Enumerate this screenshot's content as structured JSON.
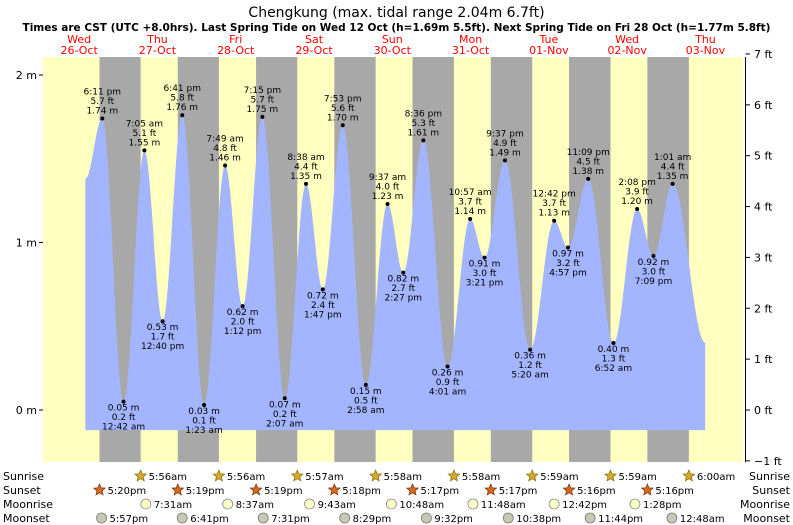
{
  "chart_data": {
    "type": "area",
    "title": "Chengkung (max. tidal range 2.04m 6.7ft)",
    "subtitle": "Times are CST (UTC +8.0hrs). Last Spring Tide on Wed 12 Oct (h=1.69m 5.5ft). Next Spring Tide on Fri 28 Oct (h=1.77m 5.8ft)",
    "x_unit": "hours since Wed 26-Oct 00:00",
    "xlim": [
      0,
      200
    ],
    "ylim_m": [
      -0.2,
      2.1
    ],
    "ylim_ft": [
      -1,
      7
    ],
    "left_axis": {
      "ticks": [
        0,
        1,
        2
      ],
      "tick_labels": [
        "0 m",
        "1 m",
        "2 m"
      ]
    },
    "right_axis": {
      "ticks": [
        -1,
        0,
        1,
        2,
        3,
        4,
        5,
        6,
        7
      ],
      "tick_labels": [
        "−1 ft",
        "0 ft",
        "1 ft",
        "2 ft",
        "3 ft",
        "4 ft",
        "5 ft",
        "6 ft",
        "7 ft"
      ]
    },
    "days": [
      {
        "dow": "Wed",
        "date": "26-Oct",
        "midnight": 0
      },
      {
        "dow": "Thu",
        "date": "27-Oct",
        "midnight": 24
      },
      {
        "dow": "Fri",
        "date": "28-Oct",
        "midnight": 48
      },
      {
        "dow": "Sat",
        "date": "29-Oct",
        "midnight": 72
      },
      {
        "dow": "Sun",
        "date": "30-Oct",
        "midnight": 96
      },
      {
        "dow": "Mon",
        "date": "31-Oct",
        "midnight": 120
      },
      {
        "dow": "Tue",
        "date": "01-Nov",
        "midnight": 144
      },
      {
        "dow": "Wed",
        "date": "02-Nov",
        "midnight": 168
      },
      {
        "dow": "Thu",
        "date": "03-Nov",
        "midnight": 192
      }
    ],
    "curve_start": {
      "t": 13.0,
      "h": 1.38
    },
    "curve_end": {
      "t": 203.0,
      "h": 0.4
    },
    "tides": [
      {
        "t": 18.18,
        "h": 1.74,
        "type": "high",
        "time": "6:11 pm",
        "m": "1.74 m",
        "ft": "5.7 ft"
      },
      {
        "t": 24.7,
        "h": 0.05,
        "type": "low",
        "time": "12:42 am",
        "m": "0.05 m",
        "ft": "0.2 ft"
      },
      {
        "t": 31.08,
        "h": 1.55,
        "type": "high",
        "time": "7:05 am",
        "m": "1.55 m",
        "ft": "5.1 ft"
      },
      {
        "t": 36.67,
        "h": 0.53,
        "type": "low",
        "time": "12:40 pm",
        "m": "0.53 m",
        "ft": "1.7 ft"
      },
      {
        "t": 42.68,
        "h": 1.76,
        "type": "high",
        "time": "6:41 pm",
        "m": "1.76 m",
        "ft": "5.8 ft"
      },
      {
        "t": 49.38,
        "h": 0.03,
        "type": "low",
        "time": "1:23 am",
        "m": "0.03 m",
        "ft": "0.1 ft"
      },
      {
        "t": 55.82,
        "h": 1.46,
        "type": "high",
        "time": "7:49 am",
        "m": "1.46 m",
        "ft": "4.8 ft"
      },
      {
        "t": 61.2,
        "h": 0.62,
        "type": "low",
        "time": "1:12 pm",
        "m": "0.62 m",
        "ft": "2.0 ft"
      },
      {
        "t": 67.25,
        "h": 1.75,
        "type": "high",
        "time": "7:15 pm",
        "m": "1.75 m",
        "ft": "5.7 ft"
      },
      {
        "t": 74.12,
        "h": 0.07,
        "type": "low",
        "time": "2:07 am",
        "m": "0.07 m",
        "ft": "0.2 ft"
      },
      {
        "t": 80.63,
        "h": 1.35,
        "type": "high",
        "time": "8:38 am",
        "m": "1.35 m",
        "ft": "4.4 ft"
      },
      {
        "t": 85.78,
        "h": 0.72,
        "type": "low",
        "time": "1:47 pm",
        "m": "0.72 m",
        "ft": "2.4 ft"
      },
      {
        "t": 91.88,
        "h": 1.7,
        "type": "high",
        "time": "7:53 pm",
        "m": "1.70 m",
        "ft": "5.6 ft"
      },
      {
        "t": 98.97,
        "h": 0.15,
        "type": "low",
        "time": "2:58 am",
        "m": "0.15 m",
        "ft": "0.5 ft"
      },
      {
        "t": 105.62,
        "h": 1.23,
        "type": "high",
        "time": "9:37 am",
        "m": "1.23 m",
        "ft": "4.0 ft"
      },
      {
        "t": 110.45,
        "h": 0.82,
        "type": "low",
        "time": "2:27 pm",
        "m": "0.82 m",
        "ft": "2.7 ft"
      },
      {
        "t": 116.6,
        "h": 1.61,
        "type": "high",
        "time": "8:36 pm",
        "m": "1.61 m",
        "ft": "5.3 ft"
      },
      {
        "t": 124.02,
        "h": 0.26,
        "type": "low",
        "time": "4:01 am",
        "m": "0.26 m",
        "ft": "0.9 ft"
      },
      {
        "t": 130.95,
        "h": 1.14,
        "type": "high",
        "time": "10:57 am",
        "m": "1.14 m",
        "ft": "3.7 ft"
      },
      {
        "t": 135.35,
        "h": 0.91,
        "type": "low",
        "time": "3:21 pm",
        "m": "0.91 m",
        "ft": "3.0 ft"
      },
      {
        "t": 141.62,
        "h": 1.49,
        "type": "high",
        "time": "9:37 pm",
        "m": "1.49 m",
        "ft": "4.9 ft"
      },
      {
        "t": 149.33,
        "h": 0.36,
        "type": "low",
        "time": "5:20 am",
        "m": "0.36 m",
        "ft": "1.2 ft"
      },
      {
        "t": 156.7,
        "h": 1.13,
        "type": "high",
        "time": "12:42 pm",
        "m": "1.13 m",
        "ft": "3.7 ft"
      },
      {
        "t": 160.95,
        "h": 0.97,
        "type": "low",
        "time": "4:57 pm",
        "m": "0.97 m",
        "ft": "3.2 ft"
      },
      {
        "t": 167.15,
        "h": 1.38,
        "type": "high",
        "time": "11:09 pm",
        "m": "1.38 m",
        "ft": "4.5 ft"
      },
      {
        "t": 174.87,
        "h": 0.4,
        "type": "low",
        "time": "6:52 am",
        "m": "0.40 m",
        "ft": "1.3 ft"
      },
      {
        "t": 182.13,
        "h": 1.2,
        "type": "high",
        "time": "2:08 pm",
        "m": "1.20 m",
        "ft": "3.9 ft"
      },
      {
        "t": 187.15,
        "h": 0.92,
        "type": "low",
        "time": "7:09 pm",
        "m": "0.92 m",
        "ft": "3.0 ft"
      },
      {
        "t": 193.02,
        "h": 1.35,
        "type": "high",
        "time": "1:01 am",
        "m": "1.35 m",
        "ft": "4.4 ft"
      }
    ],
    "sunrise_hours": [
      5.93,
      29.93,
      53.93,
      77.95,
      101.97,
      125.97,
      149.98,
      173.98,
      198.0
    ],
    "sunset_hours": [
      17.33,
      41.32,
      65.32,
      89.3,
      113.28,
      137.28,
      161.27,
      185.27
    ],
    "rows": [
      {
        "label": "Sunrise",
        "icon": "sun",
        "events": [
          {
            "t": 29.93,
            "text": "5:56am"
          },
          {
            "t": 53.93,
            "text": "5:56am"
          },
          {
            "t": 77.95,
            "text": "5:57am"
          },
          {
            "t": 101.97,
            "text": "5:58am"
          },
          {
            "t": 125.97,
            "text": "5:58am"
          },
          {
            "t": 149.98,
            "text": "5:59am"
          },
          {
            "t": 173.98,
            "text": "5:59am"
          },
          {
            "t": 198.0,
            "text": "6:00am"
          }
        ]
      },
      {
        "label": "Sunset",
        "icon": "star",
        "events": [
          {
            "t": 17.33,
            "text": "5:20pm"
          },
          {
            "t": 41.32,
            "text": "5:19pm"
          },
          {
            "t": 65.32,
            "text": "5:19pm"
          },
          {
            "t": 89.3,
            "text": "5:18pm"
          },
          {
            "t": 113.28,
            "text": "5:17pm"
          },
          {
            "t": 137.28,
            "text": "5:17pm"
          },
          {
            "t": 161.27,
            "text": "5:16pm"
          },
          {
            "t": 185.27,
            "text": "5:16pm"
          }
        ]
      },
      {
        "label": "Moonrise",
        "icon": "moon-rise",
        "events": [
          {
            "t": 31.52,
            "text": "7:31am"
          },
          {
            "t": 56.62,
            "text": "8:37am"
          },
          {
            "t": 81.72,
            "text": "9:43am"
          },
          {
            "t": 106.8,
            "text": "10:48am"
          },
          {
            "t": 131.8,
            "text": "11:48am"
          },
          {
            "t": 156.7,
            "text": "12:42pm"
          },
          {
            "t": 181.47,
            "text": "1:28pm"
          }
        ]
      },
      {
        "label": "Moonset",
        "icon": "moon-set",
        "events": [
          {
            "t": 17.95,
            "text": "5:57pm"
          },
          {
            "t": 42.68,
            "text": "6:41pm"
          },
          {
            "t": 67.52,
            "text": "7:31pm"
          },
          {
            "t": 92.48,
            "text": "8:29pm"
          },
          {
            "t": 117.53,
            "text": "9:32pm"
          },
          {
            "t": 142.63,
            "text": "10:38pm"
          },
          {
            "t": 167.73,
            "text": "11:44pm"
          },
          {
            "t": 192.8,
            "text": "12:48am"
          }
        ]
      }
    ],
    "colors": {
      "day": "#ffffc0",
      "night": "#a8a8a8",
      "water": "#a3b5ff",
      "red_text": "#ff0000",
      "sun": "#d4a92a",
      "sunset": "#d2691e",
      "moonrise": "#ffffc8",
      "moonset": "#c8c8b4"
    }
  }
}
